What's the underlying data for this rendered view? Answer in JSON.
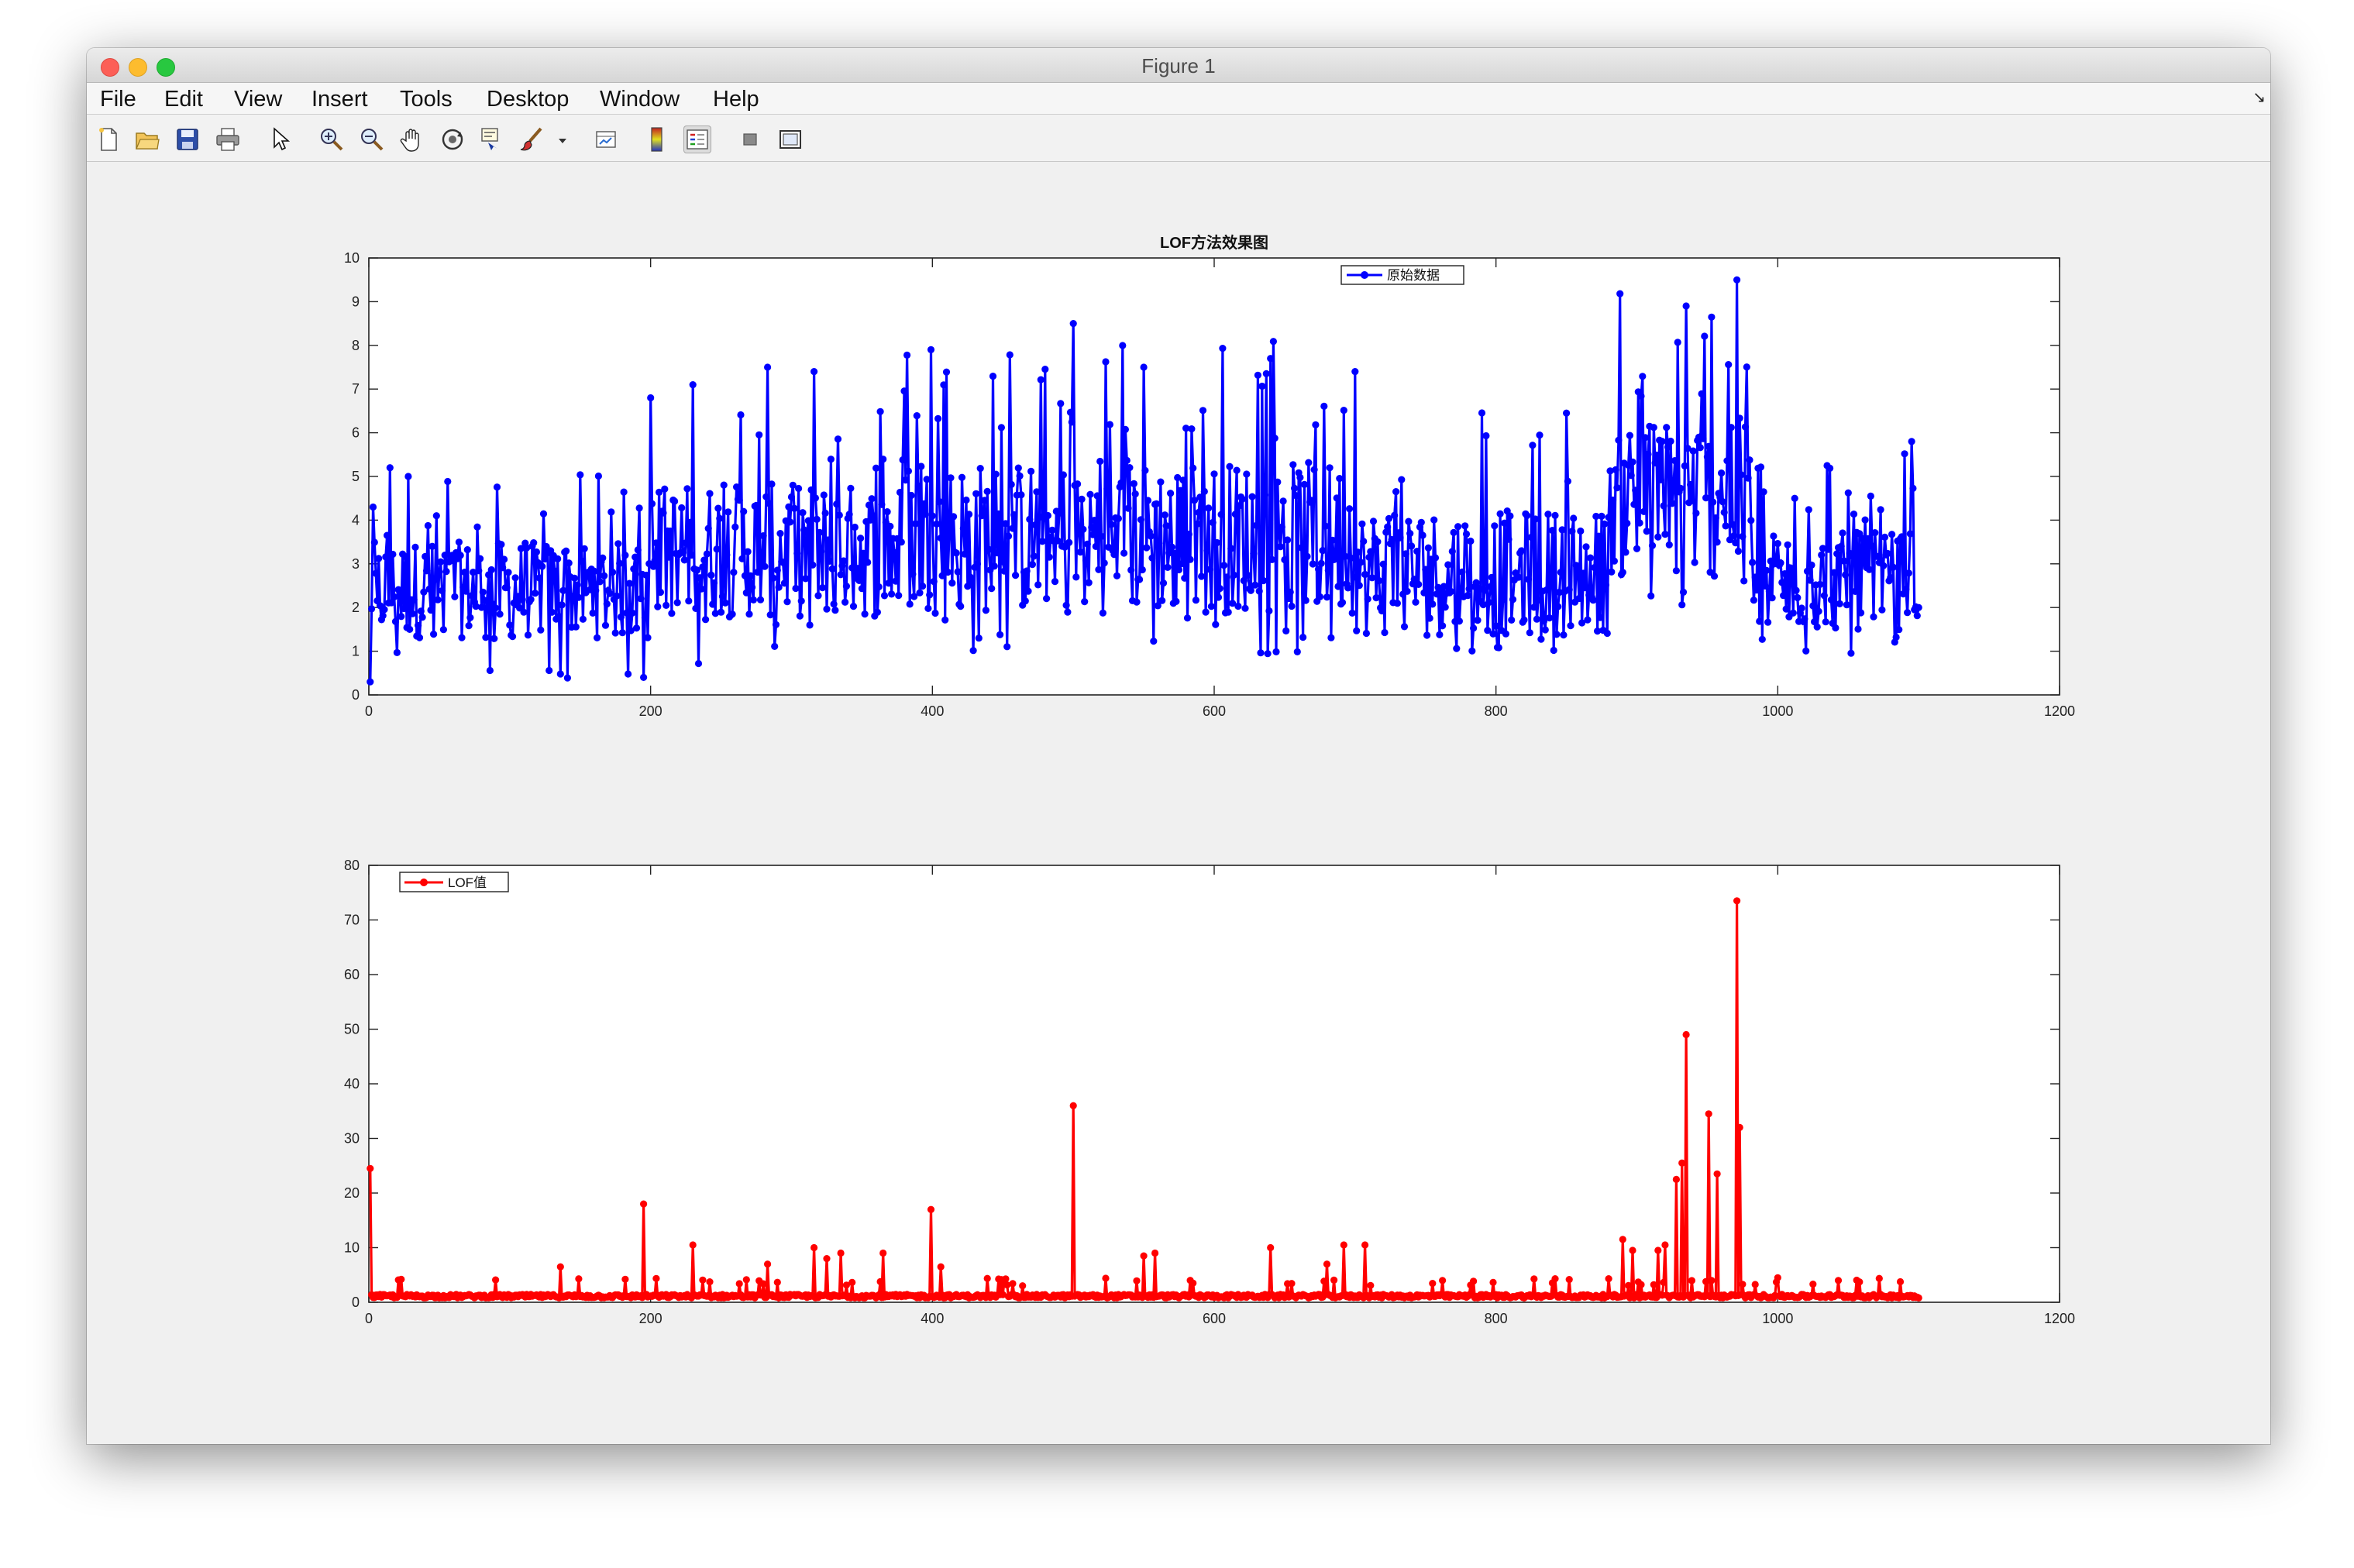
{
  "window": {
    "title": "Figure 1"
  },
  "menu": [
    "File",
    "Edit",
    "View",
    "Insert",
    "Tools",
    "Desktop",
    "Window",
    "Help"
  ],
  "toolbar": {
    "icons": [
      "new-figure-icon",
      "open-file-icon",
      "save-icon",
      "print-icon",
      "pointer-icon",
      "zoom-in-icon",
      "zoom-out-icon",
      "pan-icon",
      "rotate-3d-icon",
      "data-cursor-icon",
      "brush-icon",
      "brush-dropdown-icon",
      "link-plot-icon",
      "colorbar-icon",
      "legend-icon",
      "hide-plot-tools-icon",
      "show-plot-tools-icon"
    ]
  },
  "colors": {
    "series_top": "#0000ff",
    "series_bottom": "#ff0000",
    "figure_background": "#f0f0f0"
  },
  "chart_data": [
    {
      "type": "line",
      "title": "LOF方法效果图",
      "xlabel": "",
      "ylabel": "",
      "xlim": [
        0,
        1200
      ],
      "ylim": [
        0,
        10
      ],
      "xticks": [
        0,
        200,
        400,
        600,
        800,
        1000,
        1200
      ],
      "yticks": [
        0,
        1,
        2,
        3,
        4,
        5,
        6,
        7,
        8,
        9,
        10
      ],
      "legend": {
        "position": "top-right",
        "entries": [
          "原始数据"
        ]
      },
      "marker": "circle",
      "n_points": 1100,
      "series": [
        {
          "name": "原始数据",
          "color": "#0000ff",
          "segments": [
            {
              "x_range": [
                0,
                200
              ],
              "mean": 2.4,
              "low": 0.3,
              "high": 5.2
            },
            {
              "x_range": [
                200,
                380
              ],
              "mean": 3.3,
              "low": 0.7,
              "high": 7.5
            },
            {
              "x_range": [
                380,
                700
              ],
              "mean": 3.6,
              "low": 0.9,
              "high": 8.6
            },
            {
              "x_range": [
                700,
                880
              ],
              "mean": 2.8,
              "low": 0.8,
              "high": 7.2
            },
            {
              "x_range": [
                880,
                980
              ],
              "mean": 4.5,
              "low": 1.3,
              "high": 9.5
            },
            {
              "x_range": [
                980,
                1100
              ],
              "mean": 2.6,
              "low": 0.8,
              "high": 5.8
            }
          ],
          "points": [
            {
              "x": 1,
              "y": 0.3
            },
            {
              "x": 3,
              "y": 4.3
            },
            {
              "x": 15,
              "y": 5.2
            },
            {
              "x": 28,
              "y": 5.0
            },
            {
              "x": 195,
              "y": 0.4
            },
            {
              "x": 200,
              "y": 6.8
            },
            {
              "x": 230,
              "y": 7.1
            },
            {
              "x": 283,
              "y": 7.5
            },
            {
              "x": 316,
              "y": 7.4
            },
            {
              "x": 399,
              "y": 7.9
            },
            {
              "x": 500,
              "y": 8.5
            },
            {
              "x": 550,
              "y": 7.5
            },
            {
              "x": 640,
              "y": 7.7
            },
            {
              "x": 700,
              "y": 7.4
            },
            {
              "x": 935,
              "y": 8.9
            },
            {
              "x": 971,
              "y": 9.5
            },
            {
              "x": 1095,
              "y": 5.8
            },
            {
              "x": 1100,
              "y": 2.0
            }
          ]
        }
      ]
    },
    {
      "type": "line",
      "title": "",
      "xlabel": "",
      "ylabel": "",
      "xlim": [
        0,
        1200
      ],
      "ylim": [
        0,
        80
      ],
      "xticks": [
        0,
        200,
        400,
        600,
        800,
        1000,
        1200
      ],
      "yticks": [
        0,
        10,
        20,
        30,
        40,
        50,
        60,
        70,
        80
      ],
      "legend": {
        "position": "top-left",
        "entries": [
          "LOF值"
        ]
      },
      "marker": "circle",
      "n_points": 1100,
      "baseline": {
        "mean": 1.2,
        "low": 0.8,
        "high": 3.0
      },
      "series": [
        {
          "name": "LOF值",
          "color": "#ff0000",
          "spikes": [
            {
              "x": 1,
              "y": 24.5
            },
            {
              "x": 136,
              "y": 6.5
            },
            {
              "x": 195,
              "y": 18.0
            },
            {
              "x": 230,
              "y": 10.5
            },
            {
              "x": 283,
              "y": 7.0
            },
            {
              "x": 316,
              "y": 10.0
            },
            {
              "x": 325,
              "y": 8.0
            },
            {
              "x": 335,
              "y": 9.0
            },
            {
              "x": 365,
              "y": 9.0
            },
            {
              "x": 399,
              "y": 17.0
            },
            {
              "x": 406,
              "y": 6.5
            },
            {
              "x": 500,
              "y": 36.0
            },
            {
              "x": 550,
              "y": 8.5
            },
            {
              "x": 558,
              "y": 9.0
            },
            {
              "x": 640,
              "y": 10.0
            },
            {
              "x": 680,
              "y": 7.0
            },
            {
              "x": 692,
              "y": 10.5
            },
            {
              "x": 707,
              "y": 10.5
            },
            {
              "x": 890,
              "y": 11.5
            },
            {
              "x": 897,
              "y": 9.5
            },
            {
              "x": 915,
              "y": 9.5
            },
            {
              "x": 920,
              "y": 10.5
            },
            {
              "x": 928,
              "y": 22.5
            },
            {
              "x": 932,
              "y": 25.5
            },
            {
              "x": 935,
              "y": 49.0
            },
            {
              "x": 951,
              "y": 34.5
            },
            {
              "x": 957,
              "y": 23.5
            },
            {
              "x": 971,
              "y": 73.5
            },
            {
              "x": 973,
              "y": 32.0
            },
            {
              "x": 1000,
              "y": 4.5
            },
            {
              "x": 1100,
              "y": 0.8
            }
          ]
        }
      ]
    }
  ]
}
